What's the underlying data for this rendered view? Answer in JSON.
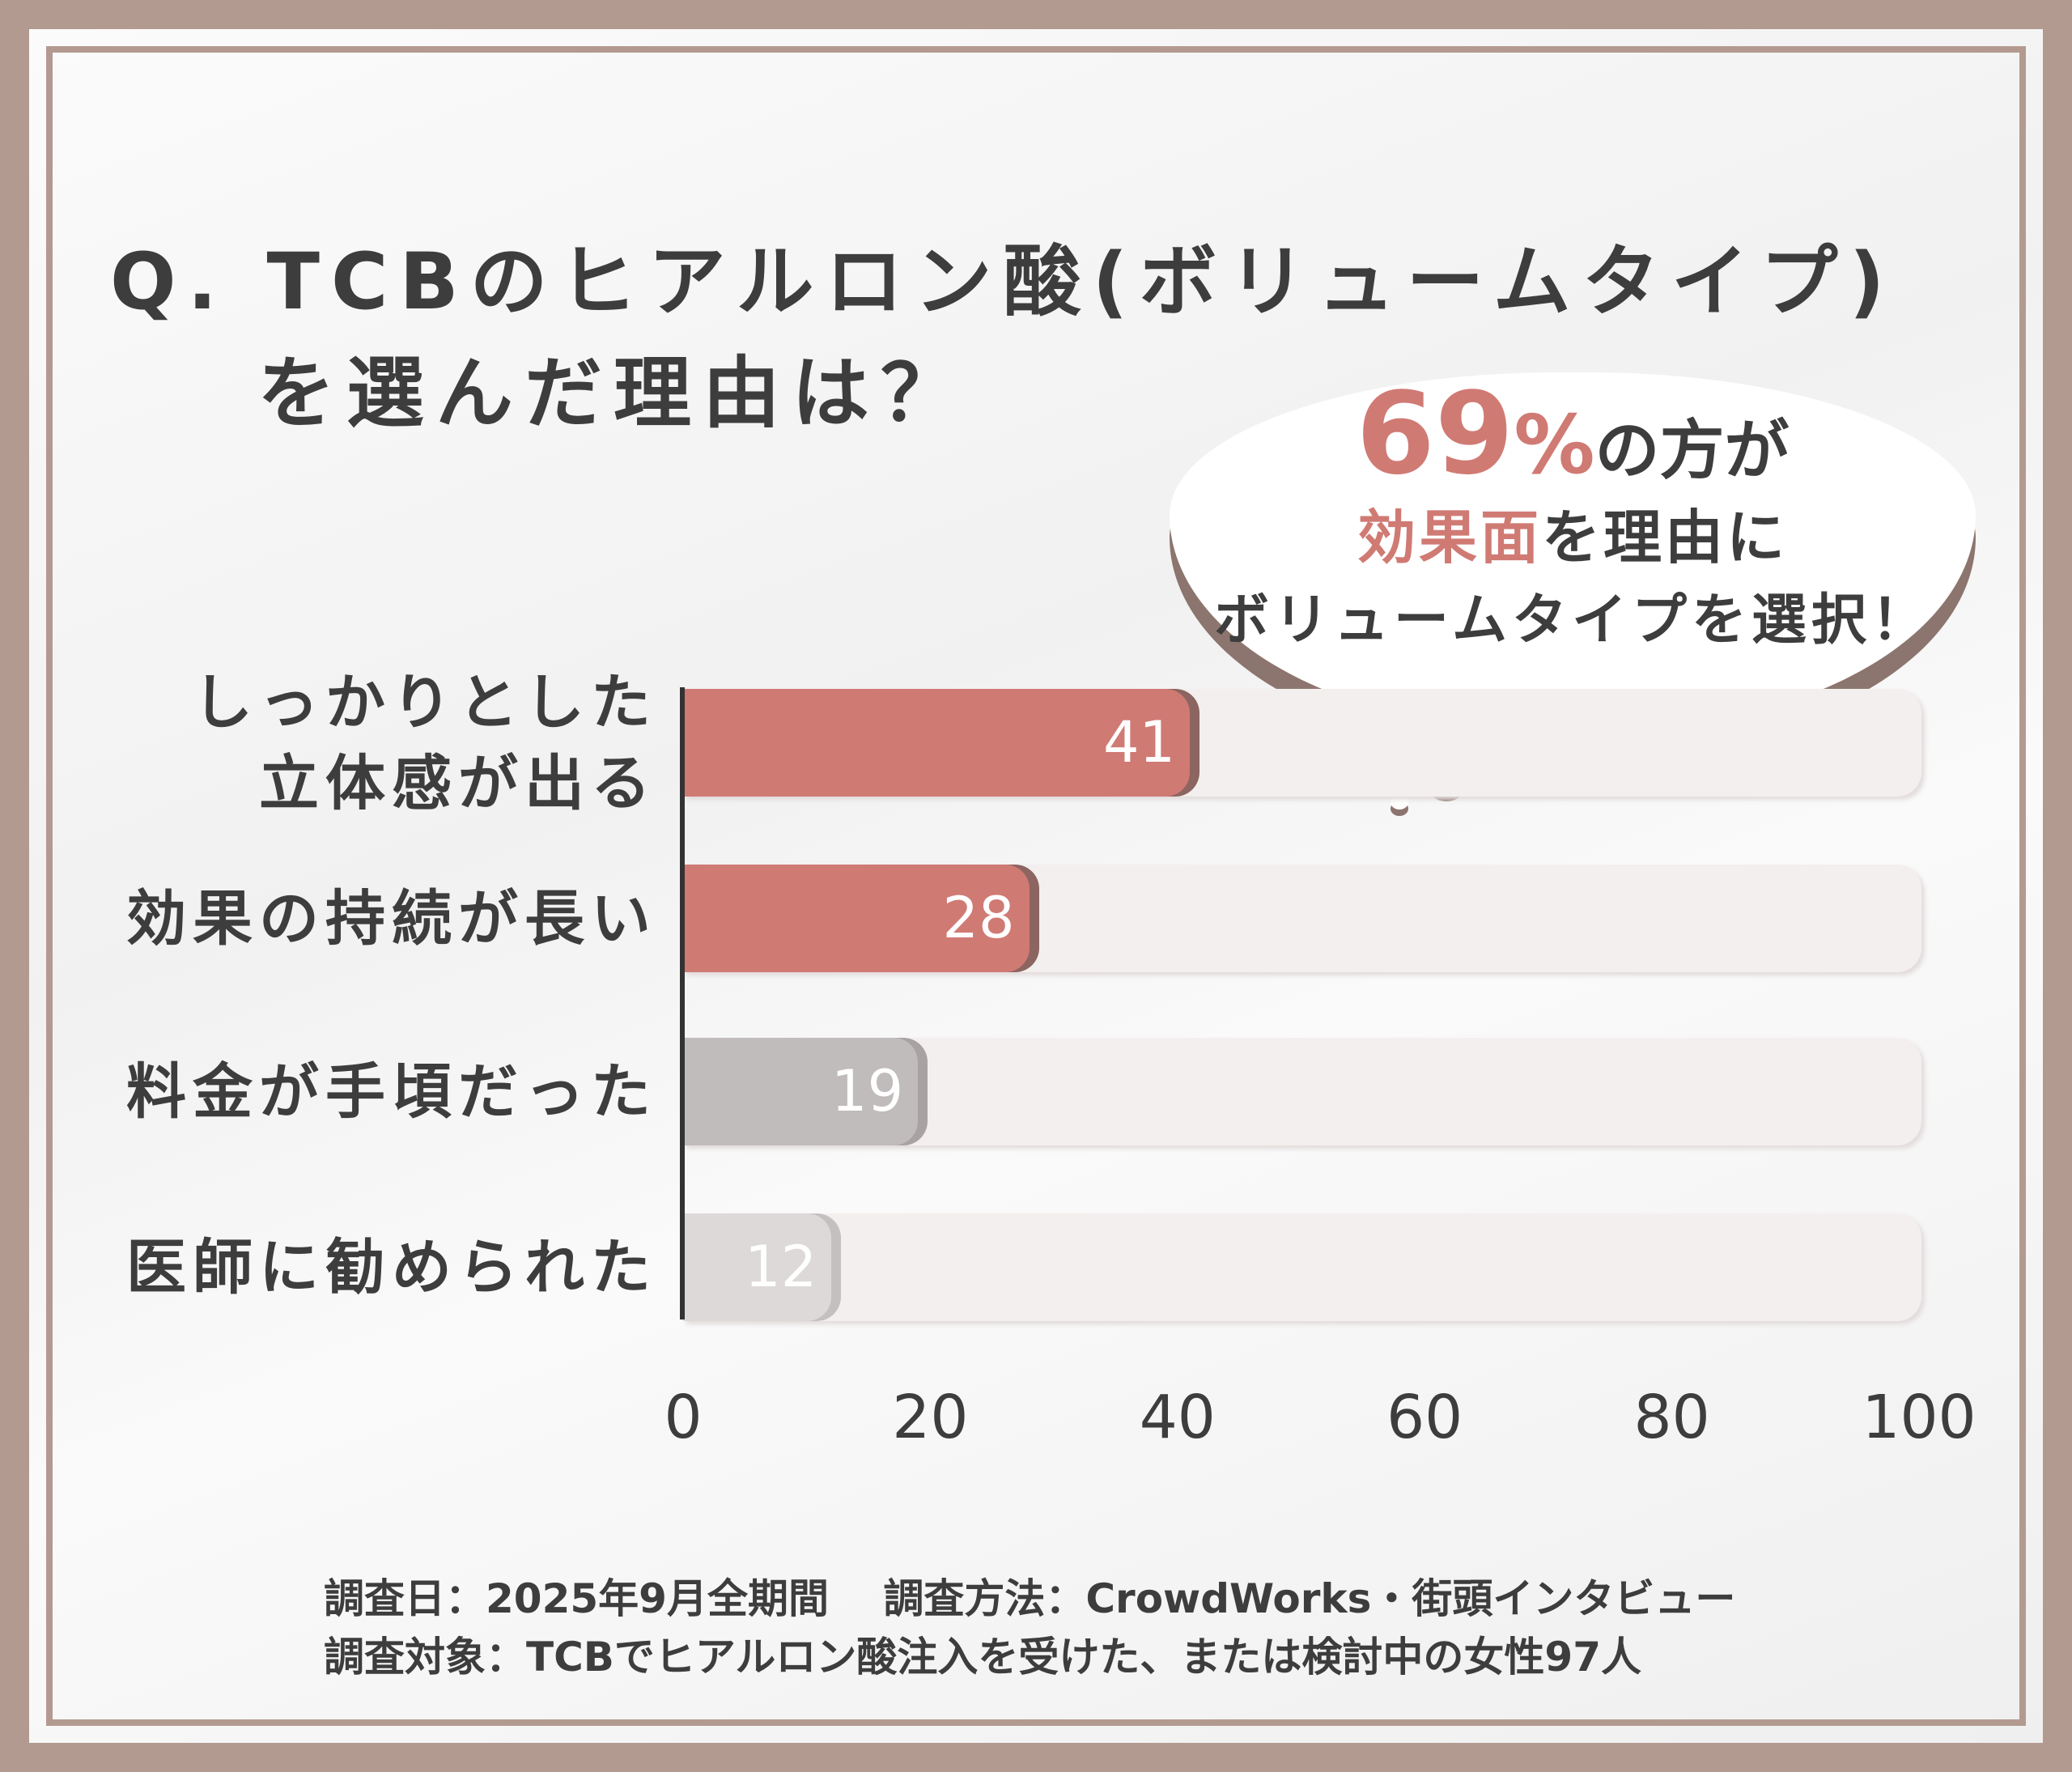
{
  "title": {
    "line1": "Q. TCBのヒアルロン酸(ボリュームタイプ)",
    "line2": "を選んだ理由は？"
  },
  "callout": {
    "percent": "69",
    "percent_sign": "%",
    "line1_rest": "の方が",
    "highlight": "効果面",
    "line2_rest": "を理由に",
    "line3": "ボリュームタイプを選択！"
  },
  "chart_data": {
    "type": "bar",
    "orientation": "horizontal",
    "categories": [
      "しっかりとした立体感が出る",
      "効果の持続が長い",
      "料金が手頃だった",
      "医師に勧められた"
    ],
    "category_lines": [
      [
        "しっかりとした",
        "立体感が出る"
      ],
      [
        "効果の持続が長い"
      ],
      [
        "料金が手頃だった"
      ],
      [
        "医師に勧められた"
      ]
    ],
    "values": [
      41,
      28,
      19,
      12
    ],
    "value_labels": [
      "41",
      "28",
      "19",
      "12"
    ],
    "bar_colors": [
      "#d07a74",
      "#d07a74",
      "#c0bcbb",
      "#dcd9d8"
    ],
    "shadow_colors": [
      "#8c6560",
      "#8c6560",
      "#a8a3a2",
      "#c4c0bf"
    ],
    "xlim": [
      0,
      100
    ],
    "ticks": [
      "0",
      "20",
      "40",
      "60",
      "80",
      "100"
    ],
    "tick_values": [
      0,
      20,
      40,
      60,
      80,
      100
    ]
  },
  "footer": {
    "line1": "調査日：2025年9月全期間　 調査方法：CrowdWorks・街頭インタビュー",
    "line2": "調査対象：TCBでヒアルロン酸注入を受けた、または検討中の女性97人"
  }
}
